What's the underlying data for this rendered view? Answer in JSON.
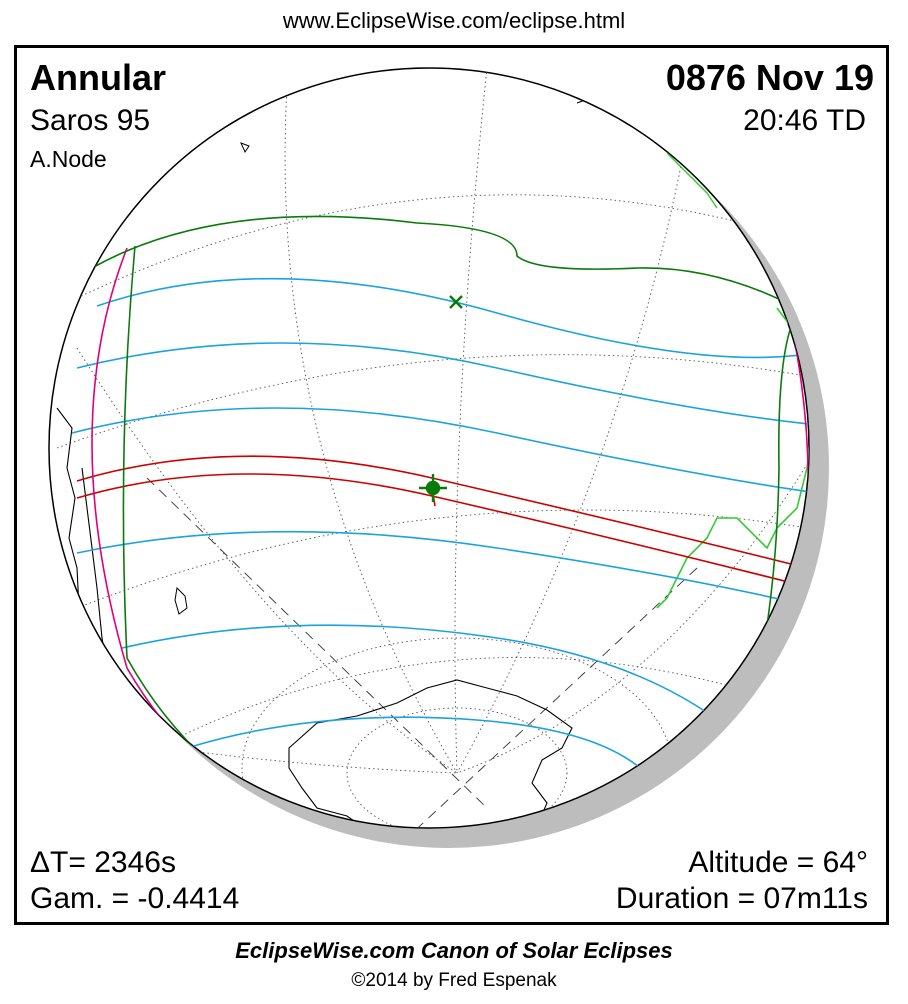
{
  "header": {
    "url": "www.EclipseWise.com/eclipse.html"
  },
  "eclipse": {
    "type": "Annular",
    "date": "0876 Nov 19",
    "saros": "Saros  95",
    "time": "20:46 TD",
    "node": "A.Node",
    "delta_t": "ΔT=   2346s",
    "gamma": "Gam. = -0.4414",
    "altitude": "Altitude = 64°",
    "duration": "Duration = 07m11s"
  },
  "colors": {
    "frame": "#000000",
    "globe_shadow": "#bdbdbd",
    "graticule": "#555555",
    "land_outline": "#000000",
    "land_highlight": "#33cc33",
    "penumbra_limit": "#0a7a0a",
    "partial_lines": "#1aa3e0",
    "central_path": "#cc0000",
    "sunrise_sunset": "#e0007a",
    "greatest_eclipse": "#0a7a0a"
  },
  "footer": {
    "title": "EclipseWise.com Canon of Solar Eclipses",
    "copyright": "©2014 by Fred Espenak"
  }
}
